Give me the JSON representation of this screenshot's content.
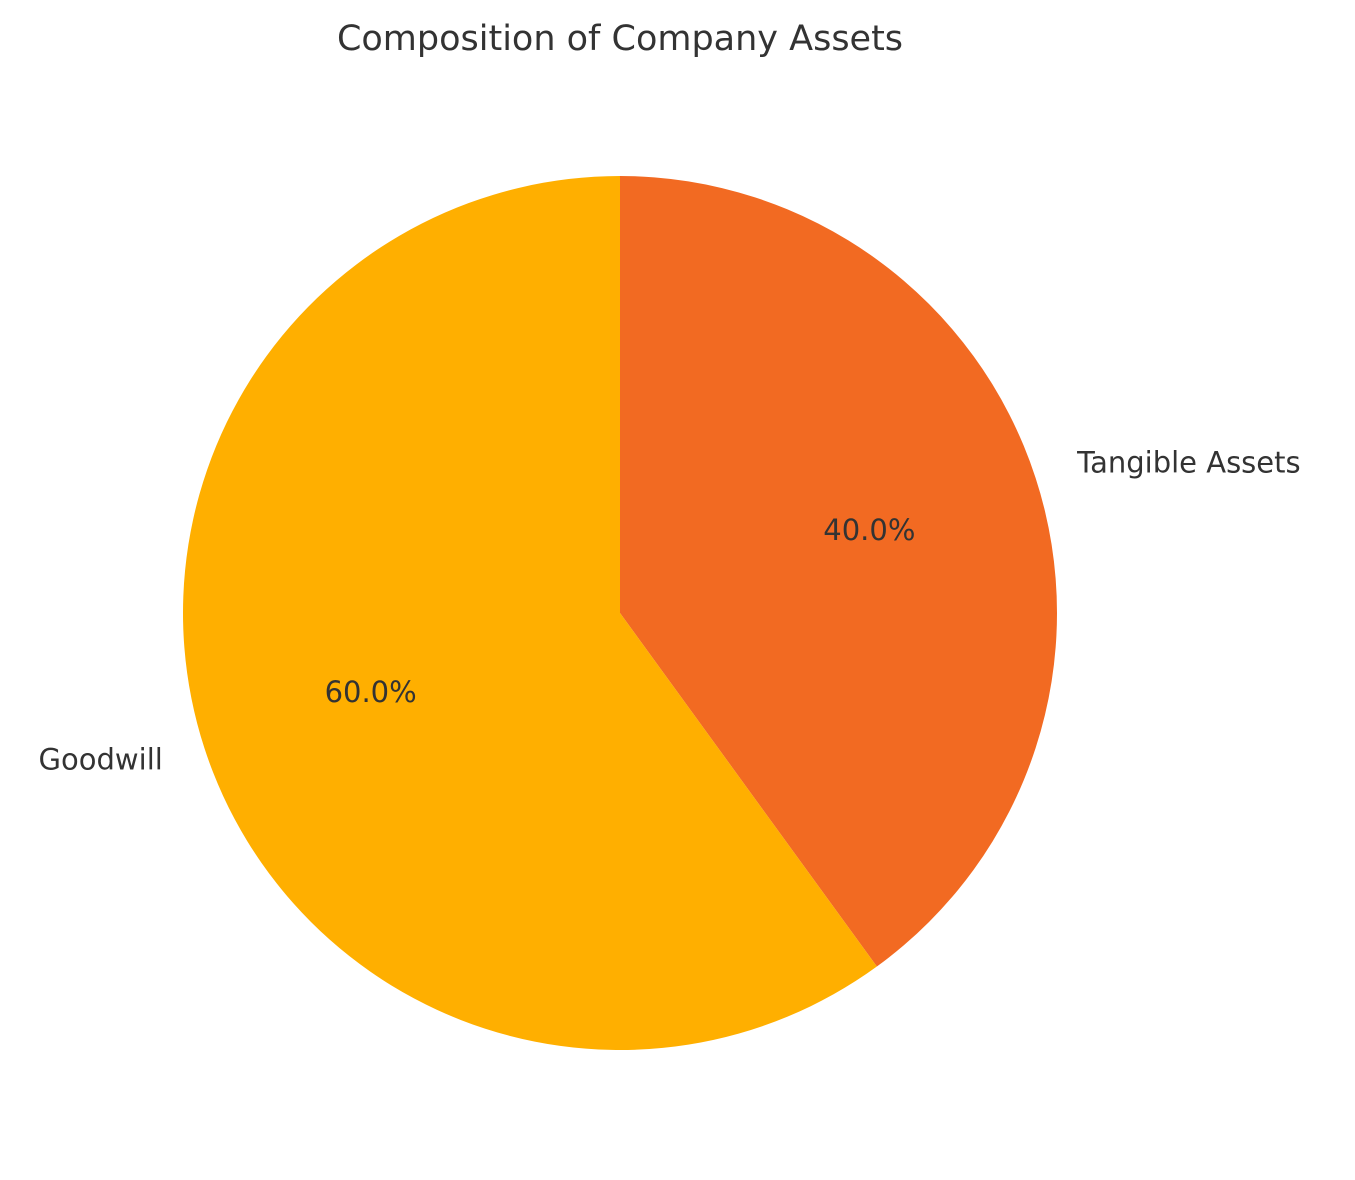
{
  "chart_data": {
    "type": "pie",
    "title": "Composition of Company Assets",
    "start_angle_deg": 90,
    "direction": "clockwise",
    "slices": [
      {
        "label": "Tangible Assets",
        "value": 40.0,
        "pct_label": "40.0%",
        "color": "#F26A22"
      },
      {
        "label": "Goodwill",
        "value": 60.0,
        "pct_label": "60.0%",
        "color": "#FFAF00"
      }
    ]
  }
}
